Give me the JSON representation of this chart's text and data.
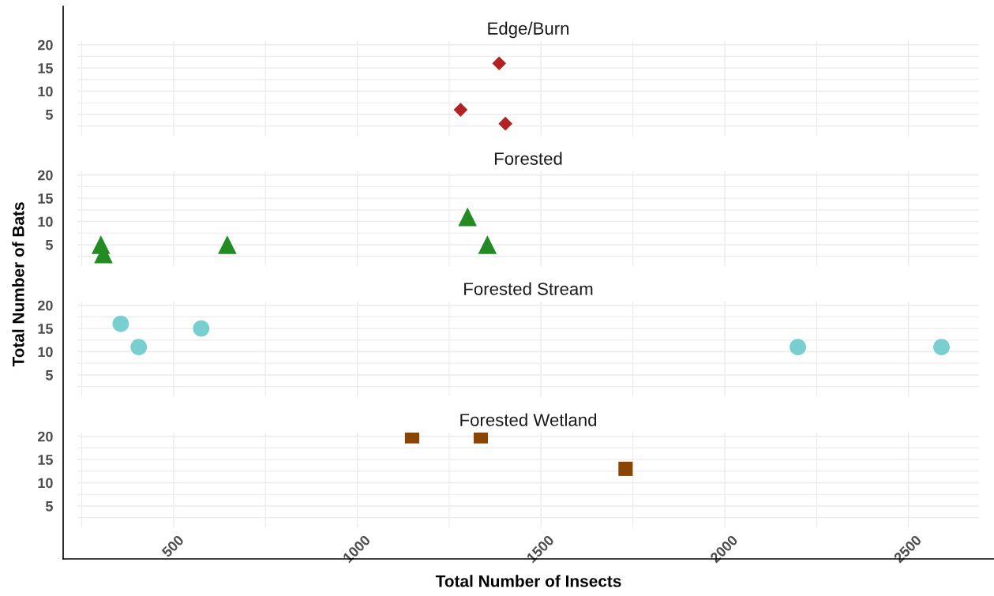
{
  "chart_data": [
    {
      "type": "scatter",
      "title": "Edge/Burn",
      "ylabel": "Total Number of Bats",
      "x": [
        1386,
        1281,
        1403
      ],
      "values": [
        16,
        6,
        3
      ],
      "color": "#b22222",
      "marker": "diamond",
      "xlim": [
        238,
        2692
      ],
      "xticks": [
        500,
        1000,
        1500,
        2000,
        2500
      ],
      "ylim": [
        0.4,
        20.8
      ],
      "yticks": [
        5,
        10,
        15,
        20
      ],
      "grid": true,
      "tick_labels": "y"
    },
    {
      "type": "scatter",
      "title": "Forested",
      "x": [
        302,
        309,
        646,
        1300,
        1354
      ],
      "values": [
        5,
        3,
        5,
        11,
        5
      ],
      "color": "#228b22",
      "marker": "triangle",
      "xlim": [
        238,
        2692
      ],
      "xticks": [
        500,
        1000,
        1500,
        2000,
        2500
      ],
      "ylim": [
        0.4,
        20.8
      ],
      "yticks": [
        5,
        10,
        15,
        20
      ],
      "grid": true,
      "tick_labels": "y"
    },
    {
      "type": "scatter",
      "title": "Forested Stream",
      "x": [
        356,
        405,
        575,
        2199,
        2590
      ],
      "values": [
        16,
        11,
        15,
        11,
        11
      ],
      "color": "#79cfcf",
      "marker": "circle",
      "xlim": [
        238,
        2692
      ],
      "xticks": [
        500,
        1000,
        1500,
        2000,
        2500
      ],
      "ylim": [
        0.4,
        20.8
      ],
      "yticks": [
        5,
        10,
        15,
        20
      ],
      "grid": true,
      "tick_labels": "y"
    },
    {
      "type": "scatter",
      "title": "Forested Wetland",
      "xlabel": "Total Number of Insects",
      "x": [
        1149,
        1336,
        1730
      ],
      "values": [
        20,
        20,
        13
      ],
      "color": "#8b4500",
      "marker": "square",
      "xlim": [
        238,
        2692
      ],
      "xticks": [
        500,
        1000,
        1500,
        2000,
        2500
      ],
      "ylim": [
        0.4,
        20.8
      ],
      "yticks": [
        5,
        10,
        15,
        20
      ],
      "grid": true
    }
  ]
}
